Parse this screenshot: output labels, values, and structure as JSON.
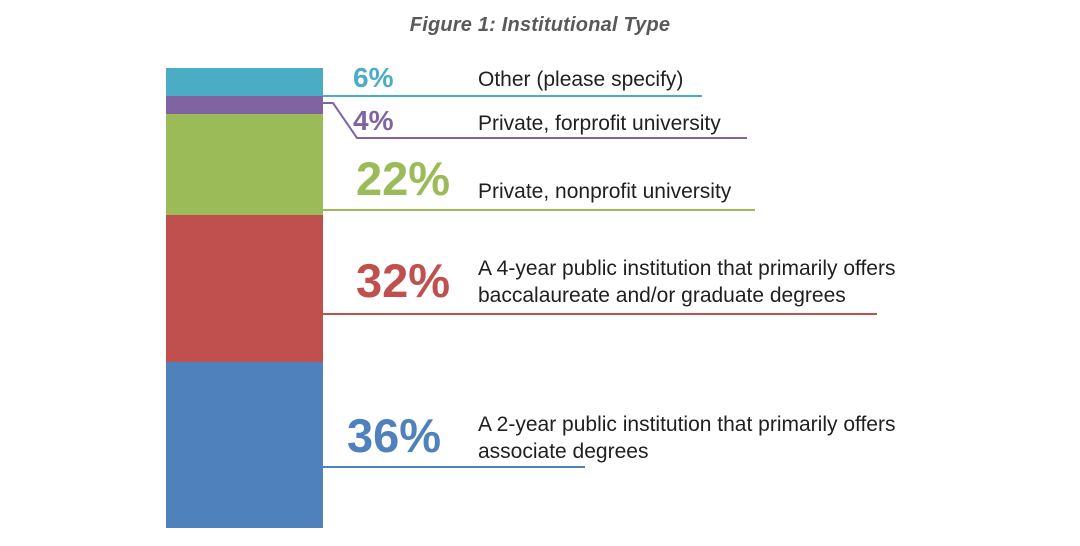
{
  "page": {
    "background": "#ffffff"
  },
  "chart_data": {
    "type": "bar",
    "subtype": "single-stacked-column-with-callouts",
    "title": "Figure 1: Institutional Type",
    "title_color": "#58595B",
    "text_color": "#1f1f1f",
    "orientation": "vertical",
    "grid": false,
    "axes_shown": false,
    "total_percent": 100,
    "legend_position": "right-callout-labels",
    "segments": [
      {
        "label": "Other (please specify)",
        "pct_label": "6%",
        "value": 6,
        "color": "#4BACC6"
      },
      {
        "label": "Private, forprofit university",
        "pct_label": "4%",
        "value": 4,
        "color": "#8064A2"
      },
      {
        "label": "Private, nonprofit university",
        "pct_label": "22%",
        "value": 22,
        "color": "#9BBB59"
      },
      {
        "label": "A 4-year public institution that primarily offers baccalaureate and/or graduate degrees",
        "pct_label": "32%",
        "value": 32,
        "color": "#C0504D"
      },
      {
        "label": "A 2-year public institution that primarily offers associate degrees",
        "pct_label": "36%",
        "value": 36,
        "color": "#4F81BD"
      }
    ]
  }
}
